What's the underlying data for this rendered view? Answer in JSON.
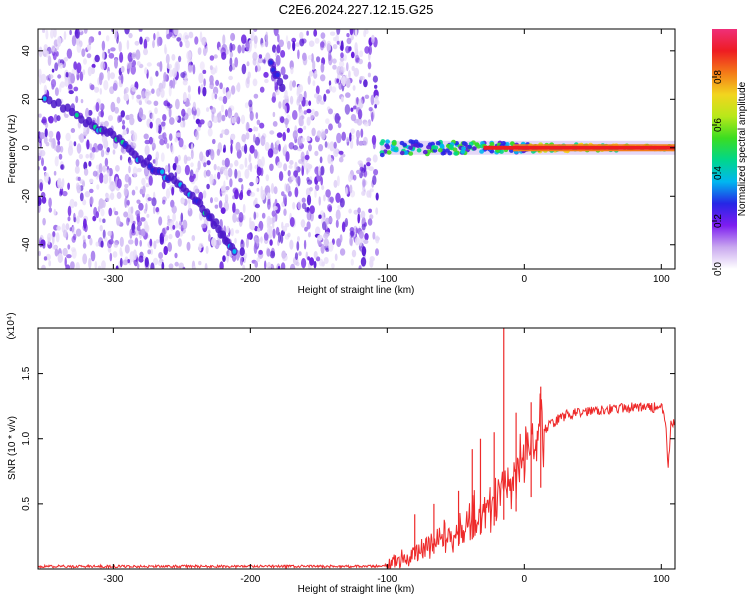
{
  "title": "C2E6.2024.227.12.15.G25",
  "chart_data": [
    {
      "type": "heatmap",
      "xlabel": "Height of straight line (km)",
      "ylabel": "Frequency (Hz)",
      "xlim": [
        -355,
        110
      ],
      "ylim": [
        -50,
        49
      ],
      "xticks": [
        -300,
        -200,
        -100,
        0,
        100
      ],
      "yticks": [
        -40,
        -20,
        0,
        20,
        40
      ],
      "noise_region_x": [
        -355,
        -107
      ],
      "signal_track": [
        {
          "x": -350,
          "y": 21
        },
        {
          "x": -320,
          "y": 11
        },
        {
          "x": -300,
          "y": 5
        },
        {
          "x": -280,
          "y": -5
        },
        {
          "x": -260,
          "y": -12
        },
        {
          "x": -240,
          "y": -22
        },
        {
          "x": -225,
          "y": -32
        },
        {
          "x": -210,
          "y": -44
        }
      ],
      "faint_track": [
        {
          "x": -185,
          "y": 35
        },
        {
          "x": -175,
          "y": 23
        }
      ],
      "converged_line": {
        "x_start": -105,
        "x_end": 110,
        "y": 0
      },
      "colorbar": {
        "label": "Normalized spectral amplitude",
        "range": [
          0.0,
          1.0
        ],
        "ticks": [
          "0.0",
          "0.2",
          "0.4",
          "0.6",
          "0.8"
        ],
        "colors": [
          "#ffffff",
          "#c9a8ef",
          "#7d1df0",
          "#2626e6",
          "#00b7f0",
          "#00d78a",
          "#3bdd21",
          "#b8e81a",
          "#f2d51e",
          "#f47a18",
          "#ee1c22",
          "#ef2f79"
        ]
      }
    },
    {
      "type": "line",
      "xlabel": "Height of straight line (km)",
      "ylabel": "SNR (10 * v/v)",
      "multiplier": "(x10⁴)",
      "xlim": [
        -355,
        110
      ],
      "ylim": [
        0,
        1.85
      ],
      "xticks": [
        -300,
        -200,
        -100,
        0,
        100
      ],
      "yticks": [
        "0.5",
        "1.0",
        "1.5"
      ],
      "line_color": "#ee2a2a",
      "series": [
        {
          "points": [
            [
              -355,
              0.02
            ],
            [
              -300,
              0.02
            ],
            [
              -250,
              0.02
            ],
            [
              -200,
              0.02
            ],
            [
              -150,
              0.02
            ],
            [
              -110,
              0.02
            ],
            [
              -100,
              0.03
            ],
            [
              -90,
              0.08
            ],
            [
              -80,
              0.12
            ],
            [
              -70,
              0.18
            ],
            [
              -60,
              0.22
            ],
            [
              -50,
              0.28
            ],
            [
              -40,
              0.36
            ],
            [
              -30,
              0.46
            ],
            [
              -20,
              0.58
            ],
            [
              -10,
              0.68
            ],
            [
              0,
              0.82
            ],
            [
              10,
              1.02
            ],
            [
              20,
              1.12
            ],
            [
              30,
              1.18
            ],
            [
              40,
              1.2
            ],
            [
              50,
              1.22
            ],
            [
              60,
              1.23
            ],
            [
              70,
              1.23
            ],
            [
              80,
              1.24
            ],
            [
              90,
              1.24
            ],
            [
              100,
              1.24
            ],
            [
              103,
              1.15
            ],
            [
              105,
              0.75
            ],
            [
              107,
              1.1
            ],
            [
              110,
              1.12
            ]
          ],
          "spikes": [
            [
              -80,
              0.42
            ],
            [
              -66,
              0.5
            ],
            [
              -48,
              0.6
            ],
            [
              -38,
              0.92
            ],
            [
              -32,
              1.0
            ],
            [
              -22,
              1.05
            ],
            [
              -15,
              1.85
            ],
            [
              -6,
              1.2
            ],
            [
              5,
              1.28
            ],
            [
              12,
              1.4
            ]
          ]
        }
      ]
    }
  ]
}
